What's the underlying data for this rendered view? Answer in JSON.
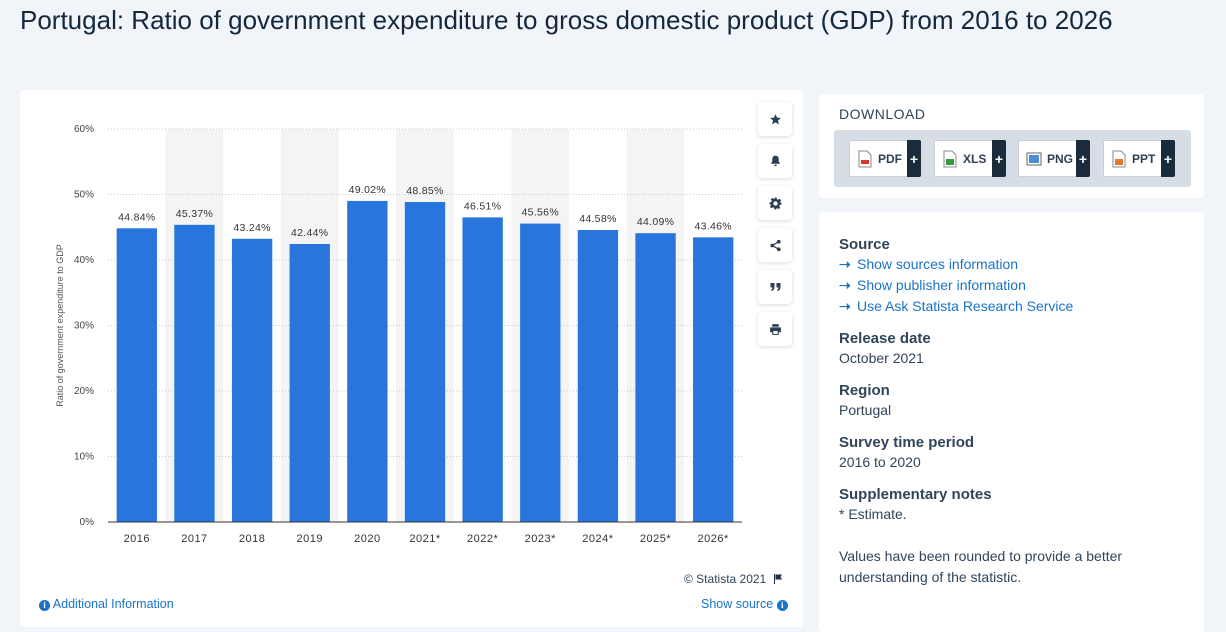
{
  "page": {
    "title": "Portugal: Ratio of government expenditure to gross domestic product (GDP) from 2016 to 2026"
  },
  "chart_data": {
    "type": "bar",
    "title": "",
    "xlabel": "",
    "ylabel": "Ratio of government expenditure to GDP",
    "categories": [
      "2016",
      "2017",
      "2018",
      "2019",
      "2020",
      "2021*",
      "2022*",
      "2023*",
      "2024*",
      "2025*",
      "2026*"
    ],
    "values": [
      44.84,
      45.37,
      43.24,
      42.44,
      49.02,
      48.85,
      46.51,
      45.56,
      44.58,
      44.09,
      43.46
    ],
    "value_labels": [
      "44.84%",
      "45.37%",
      "43.24%",
      "42.44%",
      "49.02%",
      "48.85%",
      "46.51%",
      "45.56%",
      "44.58%",
      "44.09%",
      "43.46%"
    ],
    "ylim": [
      0,
      60
    ],
    "yticks": [
      0,
      10,
      20,
      30,
      40,
      50,
      60
    ],
    "ytick_labels": [
      "0%",
      "10%",
      "20%",
      "30%",
      "40%",
      "50%",
      "60%"
    ],
    "bar_color": "#2876dd",
    "grid": true
  },
  "chart_footer": {
    "copyright": "© Statista 2021",
    "additional_info": "Additional Information",
    "show_source": "Show source"
  },
  "tools": [
    "star-icon",
    "bell-icon",
    "gear-icon",
    "share-icon",
    "quote-icon",
    "print-icon"
  ],
  "download": {
    "title": "DOWNLOAD",
    "buttons": [
      {
        "label": "PDF",
        "icon": "pdf-file-icon"
      },
      {
        "label": "XLS",
        "icon": "xls-file-icon"
      },
      {
        "label": "PNG",
        "icon": "png-file-icon"
      },
      {
        "label": "PPT",
        "icon": "ppt-file-icon"
      }
    ],
    "plus": "+"
  },
  "info": {
    "source_heading": "Source",
    "source_links": [
      "Show sources information",
      "Show publisher information",
      "Use Ask Statista Research Service"
    ],
    "release_heading": "Release date",
    "release_value": "October 2021",
    "region_heading": "Region",
    "region_value": "Portugal",
    "survey_heading": "Survey time period",
    "survey_value": "2016 to 2020",
    "notes_heading": "Supplementary notes",
    "notes_value": "* Estimate.",
    "rounding_note": "Values have been rounded to provide a better understanding of the statistic."
  },
  "colors": {
    "accent_link": "#1a73c7",
    "bar": "#2876dd",
    "dark_button": "#1a2b3c"
  }
}
